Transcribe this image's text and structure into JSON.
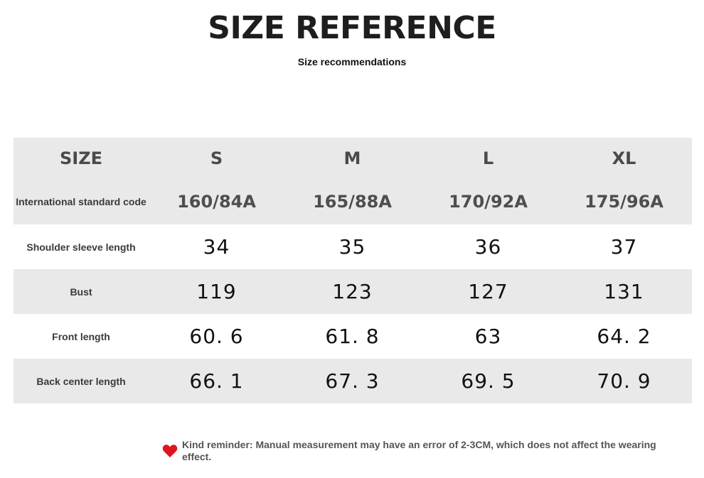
{
  "header": {
    "title": "SIZE REFERENCE",
    "subtitle": "Size recommendations"
  },
  "table": {
    "corner_label": "SIZE",
    "sizes": [
      "S",
      "M",
      "L",
      "XL"
    ],
    "rows": [
      {
        "label": "International standard code",
        "values": [
          "160/84A",
          "165/88A",
          "170/92A",
          "175/96A"
        ]
      },
      {
        "label": "Shoulder sleeve length",
        "values": [
          "34",
          "35",
          "36",
          "37"
        ]
      },
      {
        "label": "Bust",
        "values": [
          "119",
          "123",
          "127",
          "131"
        ]
      },
      {
        "label": "Front length",
        "values": [
          "60. 6",
          "61. 8",
          "63",
          "64. 2"
        ]
      },
      {
        "label": "Back center length",
        "values": [
          "66. 1",
          "67. 3",
          "69. 5",
          "70. 9"
        ]
      }
    ],
    "colors": {
      "gray_row": "#e9e9e9",
      "white_row": "#ffffff"
    }
  },
  "footer": {
    "icon": "heart-icon",
    "icon_color": "#e0141e",
    "reminder": "Kind reminder: Manual measurement may have an error of 2-3CM, which does not affect the wearing effect."
  }
}
